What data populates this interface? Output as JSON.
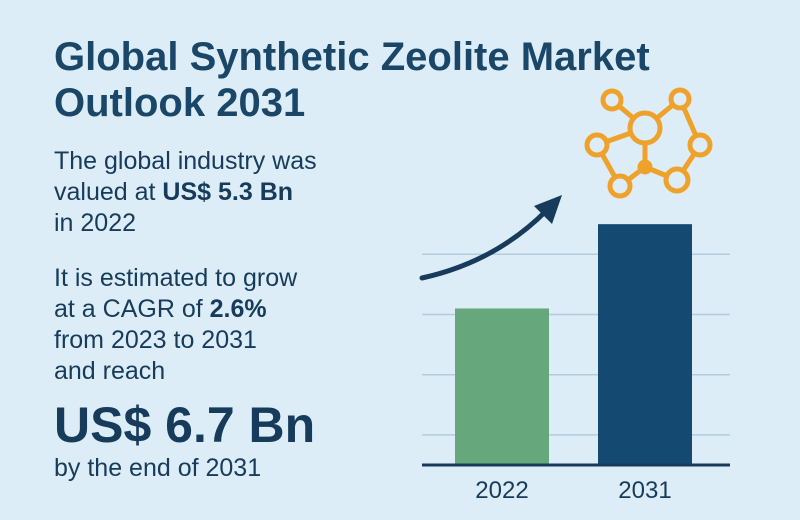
{
  "title": {
    "line1": "Global Synthetic Zeolite Market",
    "line2": "Outlook 2031"
  },
  "intro": {
    "line1": "The global industry was",
    "line2_prefix": "valued at ",
    "value_2022": "US$ 5.3 Bn",
    "line3": "in 2022"
  },
  "growth": {
    "line1": "It is estimated to grow",
    "line2_prefix": "at a CAGR of ",
    "cagr": "2.6%",
    "line3": "from 2023 to 2031",
    "line4": "and reach"
  },
  "forecast": {
    "value_2031": "US$ 6.7 Bn",
    "end_line": "by the end of 2031"
  },
  "icons": [
    "trend-arrow-icon",
    "molecule-icon"
  ],
  "colors": {
    "background": "#dcedf8",
    "title": "#1a4668",
    "bar_2022": "#66a87b",
    "bar_2031": "#144a72",
    "arrow": "#173b5a",
    "molecule": "#eea12b",
    "gridline": "#b4cbdb"
  },
  "chart_data": {
    "type": "bar",
    "categories": [
      "2022",
      "2031"
    ],
    "values": [
      5.3,
      6.7
    ],
    "ylim": [
      2.7,
      7.5
    ],
    "grid": true,
    "title": "",
    "xlabel": "",
    "ylabel": ""
  }
}
